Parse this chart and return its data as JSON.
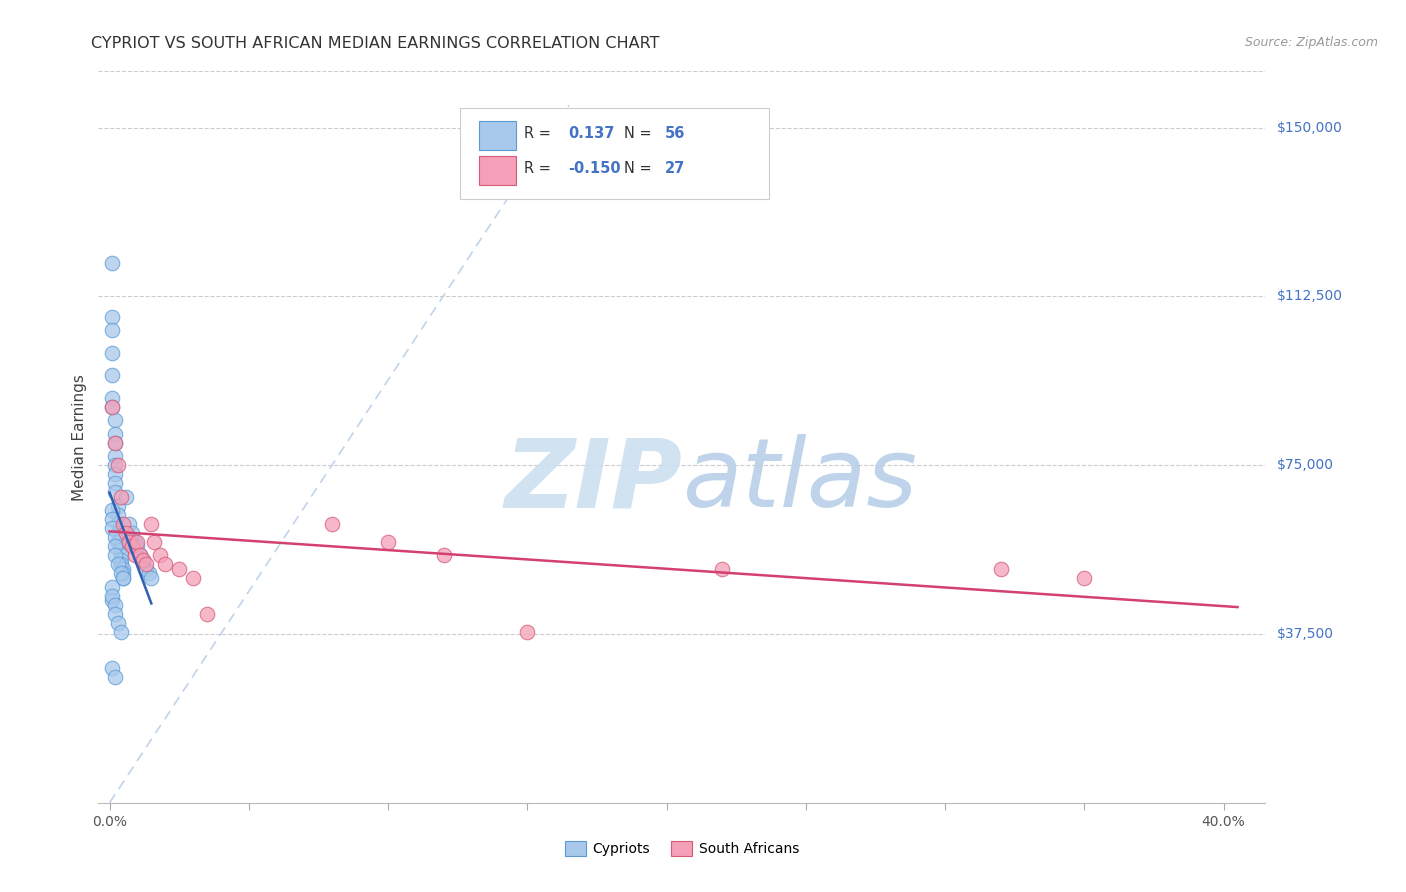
{
  "title": "CYPRIOT VS SOUTH AFRICAN MEDIAN EARNINGS CORRELATION CHART",
  "source": "Source: ZipAtlas.com",
  "ylabel": "Median Earnings",
  "yticks_labels": [
    "$37,500",
    "$75,000",
    "$112,500",
    "$150,000"
  ],
  "yticks_values": [
    37500,
    75000,
    112500,
    150000
  ],
  "ymin": 0,
  "ymax": 162500,
  "xmin": -0.004,
  "xmax": 0.415,
  "legend_r_cypriot": "0.137",
  "legend_n_cypriot": "56",
  "legend_r_sa": "-0.150",
  "legend_n_sa": "27",
  "cypriot_color": "#a8c8ec",
  "cypriot_edge_color": "#5b9bd5",
  "sa_color": "#f4a0b8",
  "sa_edge_color": "#d45a78",
  "trendline_cypriot_color": "#3060b0",
  "trendline_sa_color": "#d44070",
  "dashed_line_color": "#b8d0e8",
  "background_color": "#ffffff",
  "grid_color": "#cccccc",
  "title_color": "#333333",
  "source_color": "#999999",
  "right_label_color": "#4472c4",
  "watermark_zip_color": "#ccdff0",
  "watermark_atlas_color": "#b8d0e8",
  "cypriot_x": [
    0.001,
    0.001,
    0.001,
    0.001,
    0.001,
    0.001,
    0.001,
    0.002,
    0.002,
    0.002,
    0.002,
    0.002,
    0.002,
    0.002,
    0.002,
    0.003,
    0.003,
    0.003,
    0.003,
    0.003,
    0.004,
    0.004,
    0.004,
    0.004,
    0.005,
    0.005,
    0.005,
    0.006,
    0.006,
    0.007,
    0.008,
    0.009,
    0.01,
    0.011,
    0.012,
    0.013,
    0.014,
    0.015,
    0.001,
    0.001,
    0.001,
    0.002,
    0.002,
    0.002,
    0.003,
    0.004,
    0.005,
    0.001,
    0.002,
    0.001,
    0.001,
    0.001,
    0.002,
    0.002,
    0.003,
    0.004
  ],
  "cypriot_y": [
    120000,
    108000,
    105000,
    100000,
    95000,
    90000,
    88000,
    85000,
    82000,
    80000,
    77000,
    75000,
    73000,
    71000,
    69000,
    66000,
    64000,
    62000,
    60000,
    58000,
    57000,
    55000,
    54000,
    53000,
    52000,
    51000,
    50000,
    68000,
    60000,
    62000,
    60000,
    58000,
    57000,
    55000,
    54000,
    52000,
    51000,
    50000,
    65000,
    63000,
    61000,
    59000,
    57000,
    55000,
    53000,
    51000,
    50000,
    30000,
    28000,
    45000,
    48000,
    46000,
    44000,
    42000,
    40000,
    38000
  ],
  "sa_x": [
    0.001,
    0.002,
    0.003,
    0.004,
    0.005,
    0.006,
    0.007,
    0.008,
    0.009,
    0.01,
    0.011,
    0.012,
    0.013,
    0.015,
    0.016,
    0.018,
    0.02,
    0.025,
    0.03,
    0.035,
    0.08,
    0.1,
    0.12,
    0.15,
    0.22,
    0.32,
    0.35
  ],
  "sa_y": [
    88000,
    80000,
    75000,
    68000,
    62000,
    60000,
    58000,
    57000,
    55000,
    58000,
    55000,
    54000,
    53000,
    62000,
    58000,
    55000,
    53000,
    52000,
    50000,
    42000,
    62000,
    58000,
    55000,
    38000,
    52000,
    52000,
    50000
  ]
}
